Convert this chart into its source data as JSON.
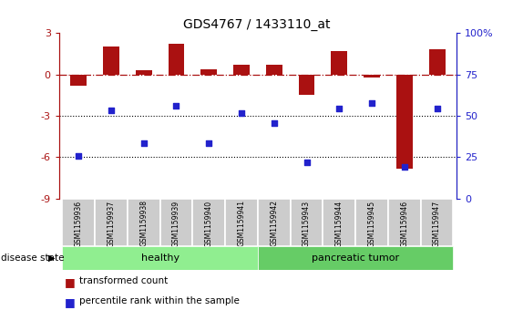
{
  "title": "GDS4767 / 1433110_at",
  "samples": [
    "GSM1159936",
    "GSM1159937",
    "GSM1159938",
    "GSM1159939",
    "GSM1159940",
    "GSM1159941",
    "GSM1159942",
    "GSM1159943",
    "GSM1159944",
    "GSM1159945",
    "GSM1159946",
    "GSM1159947"
  ],
  "bar_values": [
    -0.8,
    2.0,
    0.3,
    2.2,
    0.4,
    0.7,
    0.7,
    -1.5,
    1.7,
    -0.2,
    -6.8,
    1.8
  ],
  "dot_values": [
    -5.9,
    -2.6,
    -5.0,
    -2.3,
    -5.0,
    -2.8,
    -3.5,
    -6.4,
    -2.5,
    -2.1,
    -6.7,
    -2.5
  ],
  "bar_color": "#aa1111",
  "dot_color": "#2222cc",
  "healthy_count": 6,
  "tumor_count": 6,
  "healthy_label": "healthy",
  "tumor_label": "pancreatic tumor",
  "ylim_left": [
    -9,
    3
  ],
  "ylim_right": [
    0,
    100
  ],
  "yticks_left": [
    -9,
    -6,
    -3,
    0,
    3
  ],
  "yticks_right": [
    0,
    25,
    50,
    75,
    100
  ],
  "disease_label": "disease state",
  "legend_bar": "transformed count",
  "legend_dot": "percentile rank within the sample",
  "hline_y": 0,
  "dotted_lines": [
    -3,
    -6
  ],
  "bar_width": 0.5,
  "healthy_color": "#90ee90",
  "tumor_color": "#66cc66",
  "sample_box_color": "#cccccc",
  "bg_color": "#ffffff"
}
